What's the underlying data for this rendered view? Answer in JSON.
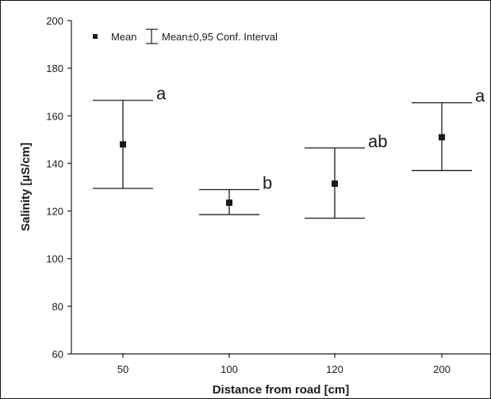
{
  "chart_data": {
    "type": "scatter",
    "xlabel": "Distance from road [cm]",
    "ylabel": "Salinity [µS/cm]",
    "ylim": [
      60,
      200
    ],
    "yticks": [
      60,
      80,
      100,
      120,
      140,
      160,
      180,
      200
    ],
    "categories": [
      "50",
      "100",
      "120",
      "200"
    ],
    "legend": {
      "placement": "top-left",
      "entries": [
        "Mean",
        "Mean±0,95 Conf. Interval"
      ]
    },
    "grid": false,
    "series": [
      {
        "name": "Mean",
        "values": [
          148,
          123.5,
          131.5,
          151
        ],
        "ci_upper": [
          166.5,
          129,
          146.5,
          165.5
        ],
        "ci_lower": [
          129.5,
          118.5,
          117,
          137
        ],
        "group_letters": [
          "a",
          "b",
          "ab",
          "a"
        ]
      }
    ]
  }
}
